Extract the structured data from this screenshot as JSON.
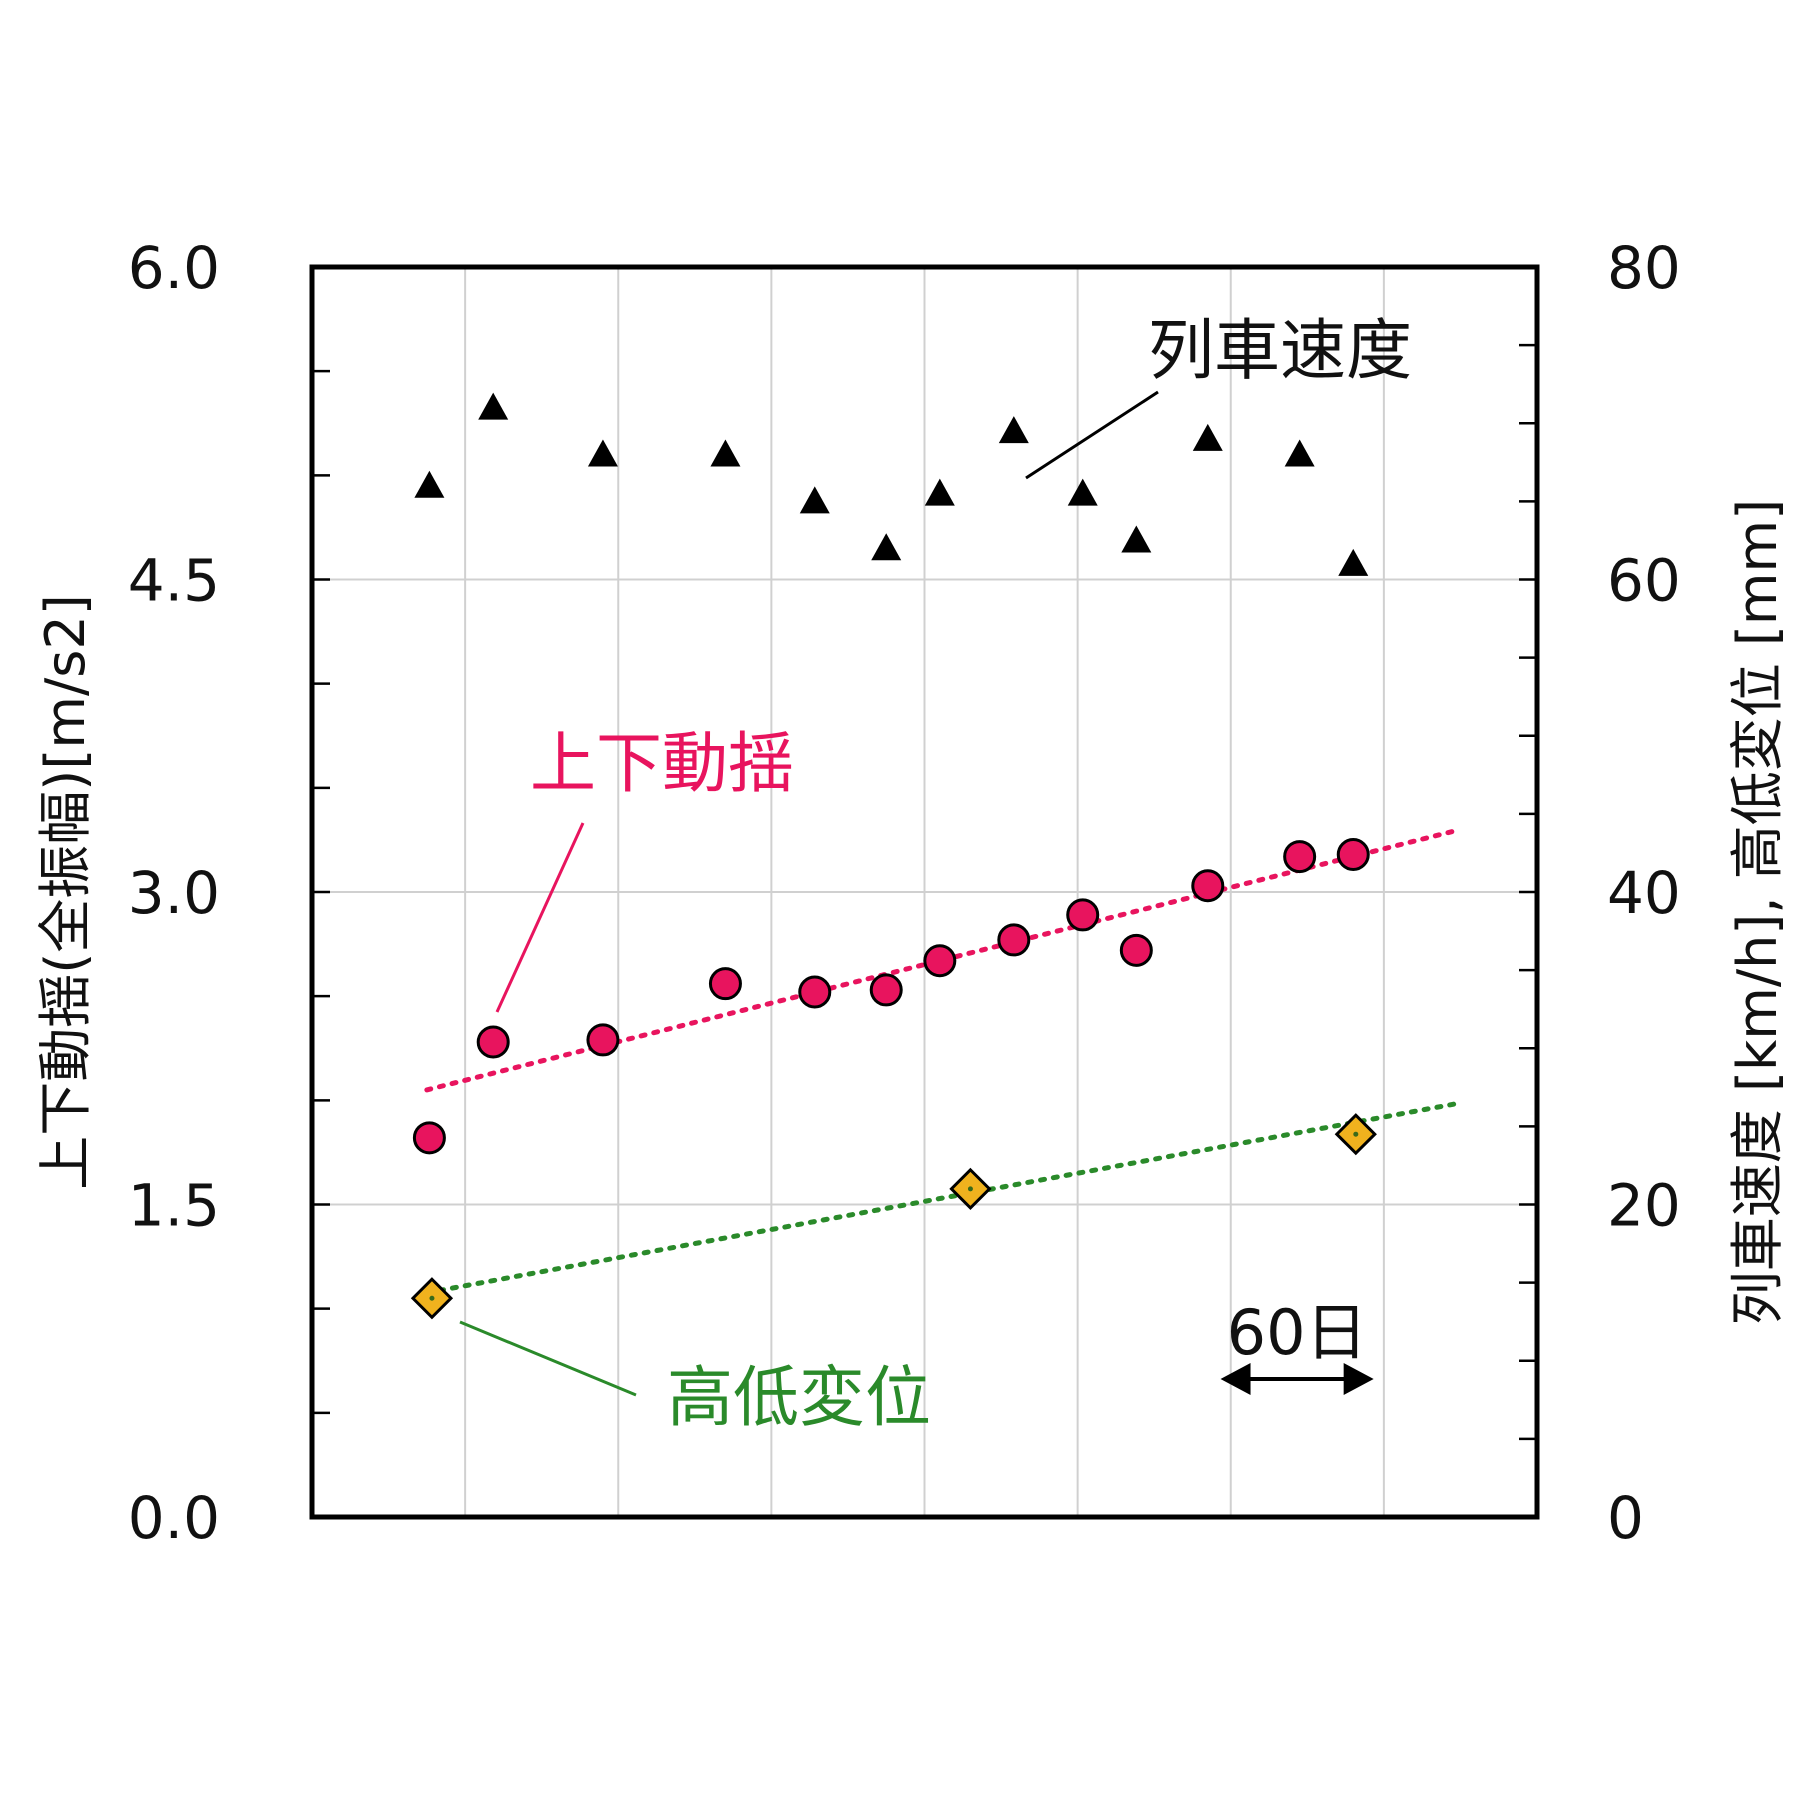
{
  "chart_data": {
    "type": "scatter",
    "y_left": {
      "label": "上下動揺(全振幅)[m/s2]",
      "range": [
        0,
        6
      ],
      "ticks": [
        "0.0",
        "1.5",
        "3.0",
        "4.5",
        "6.0"
      ],
      "tick_values": [
        0,
        1.5,
        3.0,
        4.5,
        6.0
      ]
    },
    "y_right": {
      "label": "列車速度 [km/h], 高低変位 [mm]",
      "range": [
        0,
        80
      ],
      "ticks": [
        "0",
        "20",
        "40",
        "60",
        "80"
      ],
      "tick_values": [
        0,
        20,
        40,
        60,
        80
      ]
    },
    "x": {
      "unit": "日",
      "range": [
        0,
        480
      ],
      "gridlines": [
        60,
        120,
        180,
        240,
        300,
        360,
        420
      ]
    },
    "grid": true,
    "series": [
      {
        "name": "上下動揺",
        "axis": "left",
        "marker": "circle",
        "color": "#e8145e",
        "points": [
          {
            "x": 46,
            "y": 1.82
          },
          {
            "x": 71,
            "y": 2.28
          },
          {
            "x": 114,
            "y": 2.29
          },
          {
            "x": 162,
            "y": 2.56
          },
          {
            "x": 197,
            "y": 2.52
          },
          {
            "x": 225,
            "y": 2.53
          },
          {
            "x": 246,
            "y": 2.67
          },
          {
            "x": 275,
            "y": 2.77
          },
          {
            "x": 302,
            "y": 2.89
          },
          {
            "x": 323,
            "y": 2.72
          },
          {
            "x": 351,
            "y": 3.03
          },
          {
            "x": 387,
            "y": 3.17
          },
          {
            "x": 408,
            "y": 3.18
          }
        ],
        "trend": {
          "x": [
            45,
            450
          ],
          "y": [
            2.05,
            3.3
          ]
        }
      },
      {
        "name": "列車速度",
        "axis": "right",
        "marker": "triangle",
        "color": "#000000",
        "points": [
          {
            "x": 46,
            "y": 66
          },
          {
            "x": 71,
            "y": 71
          },
          {
            "x": 114,
            "y": 68
          },
          {
            "x": 162,
            "y": 68
          },
          {
            "x": 197,
            "y": 65
          },
          {
            "x": 225,
            "y": 62
          },
          {
            "x": 246,
            "y": 65.5
          },
          {
            "x": 275,
            "y": 69.5
          },
          {
            "x": 302,
            "y": 65.5
          },
          {
            "x": 323,
            "y": 62.5
          },
          {
            "x": 351,
            "y": 69
          },
          {
            "x": 387,
            "y": 68
          },
          {
            "x": 408,
            "y": 61
          }
        ]
      },
      {
        "name": "高低変位",
        "axis": "right",
        "marker": "diamond",
        "color": "#f0b21e",
        "points": [
          {
            "x": 47,
            "y": 14
          },
          {
            "x": 258,
            "y": 21
          },
          {
            "x": 409,
            "y": 24.5
          }
        ],
        "trend": {
          "x": [
            50,
            450
          ],
          "y": [
            14.5,
            26.5
          ]
        }
      }
    ],
    "annotations": {
      "speed_label": "列車速度",
      "sway_label": "上下動揺",
      "track_label": "高低変位",
      "span_label": "60日",
      "span_days": 60,
      "span_start_day": 356
    }
  },
  "colors": {
    "sway": "#e8145e",
    "track_marker": "#f0b21e",
    "track_text": "#2a8a2a",
    "grid": "#d0d0d0",
    "axis": "#000000"
  }
}
